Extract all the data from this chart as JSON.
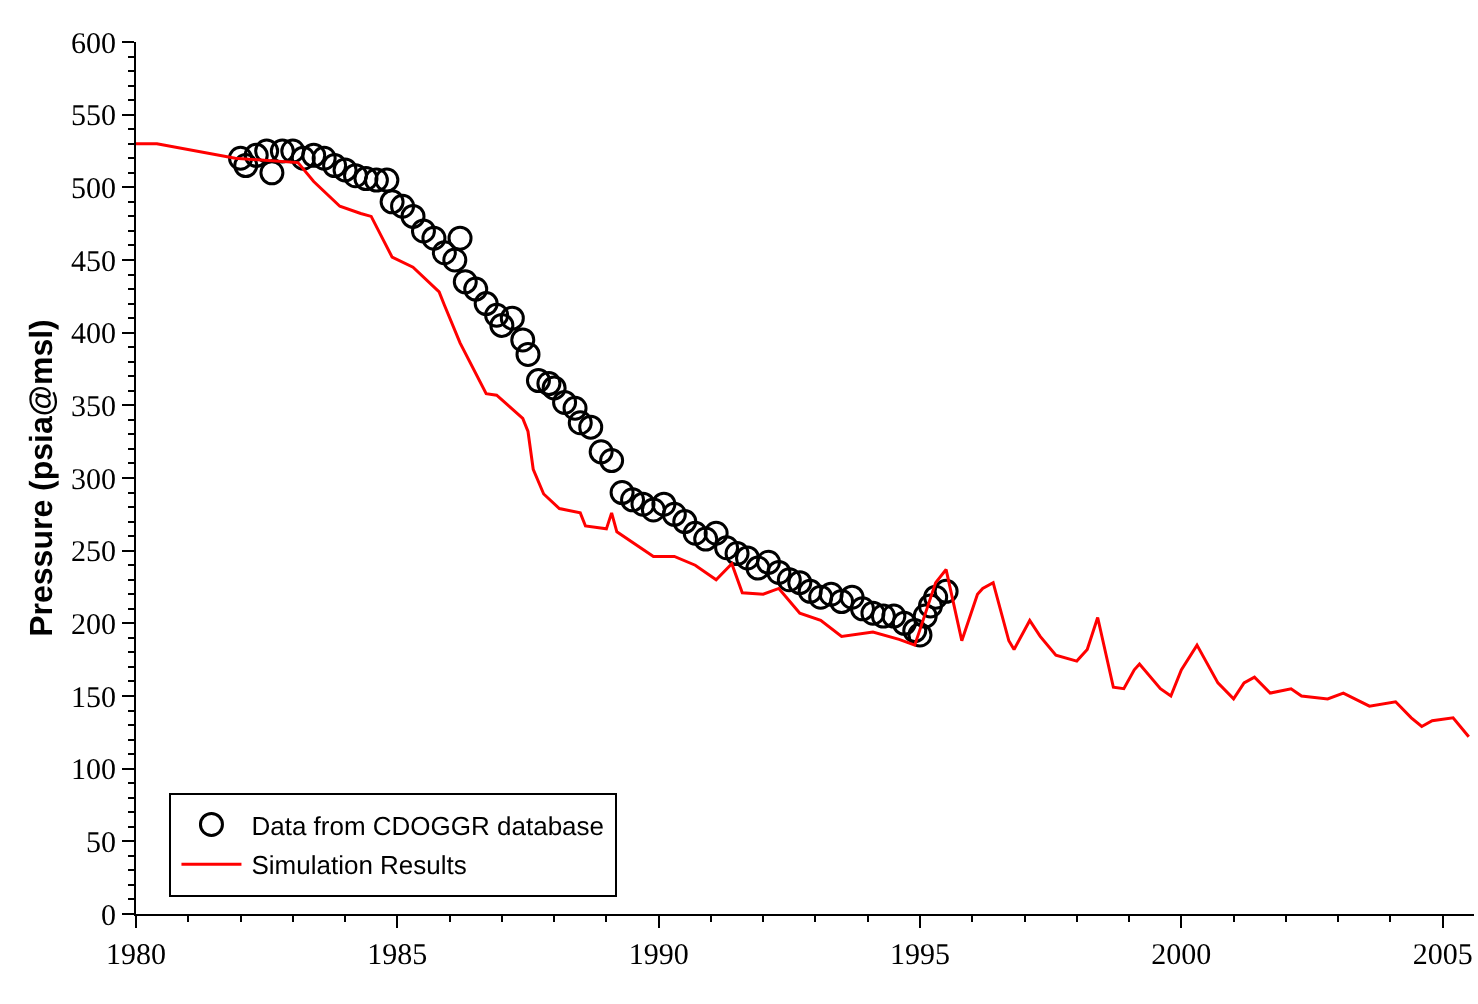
{
  "chart_data": {
    "type": "line",
    "ylabel": "Pressure (psia@msl)",
    "xlim": [
      1980,
      2005.6
    ],
    "xticks": [
      1980,
      1985,
      1990,
      1995,
      2000,
      2005
    ],
    "ylim": [
      0,
      600
    ],
    "yticks": [
      0,
      50,
      100,
      150,
      200,
      250,
      300,
      350,
      400,
      450,
      500,
      550,
      600
    ],
    "grid": false,
    "legend": "bottom left",
    "series": [
      {
        "name": "Data from CDOGGR database",
        "type": "scatter",
        "marker": "circle",
        "color": "#000000",
        "x": [
          1982.0,
          1982.1,
          1982.3,
          1982.5,
          1982.6,
          1982.8,
          1983.0,
          1983.2,
          1983.4,
          1983.6,
          1983.8,
          1984.0,
          1984.2,
          1984.4,
          1984.6,
          1984.8,
          1984.9,
          1985.1,
          1985.3,
          1985.5,
          1985.7,
          1985.9,
          1986.1,
          1986.2,
          1986.3,
          1986.5,
          1986.7,
          1986.9,
          1987.0,
          1987.2,
          1987.4,
          1987.5,
          1987.7,
          1987.9,
          1988.0,
          1988.2,
          1988.4,
          1988.5,
          1988.7,
          1988.9,
          1989.1,
          1989.3,
          1989.5,
          1989.7,
          1989.9,
          1990.1,
          1990.3,
          1990.5,
          1990.7,
          1990.9,
          1991.1,
          1991.3,
          1991.5,
          1991.7,
          1991.9,
          1992.1,
          1992.3,
          1992.5,
          1992.7,
          1992.9,
          1993.1,
          1993.3,
          1993.5,
          1993.7,
          1993.9,
          1994.1,
          1994.3,
          1994.5,
          1994.7,
          1994.9,
          1995.0,
          1995.1,
          1995.2,
          1995.3,
          1995.5
        ],
        "values": [
          520,
          515,
          522,
          525,
          510,
          525,
          525,
          520,
          522,
          520,
          515,
          512,
          508,
          506,
          505,
          505,
          490,
          487,
          480,
          470,
          465,
          455,
          450,
          465,
          435,
          430,
          420,
          412,
          405,
          410,
          395,
          385,
          367,
          365,
          362,
          352,
          348,
          338,
          335,
          318,
          312,
          290,
          285,
          282,
          278,
          282,
          275,
          270,
          262,
          258,
          262,
          252,
          248,
          245,
          238,
          242,
          235,
          230,
          228,
          222,
          218,
          220,
          215,
          218,
          210,
          207,
          205,
          205,
          200,
          195,
          192,
          205,
          212,
          218,
          222
        ]
      },
      {
        "name": "Simulation Results",
        "marker": "none",
        "line_style": "solid",
        "color": "#ff0000",
        "x": [
          1980.0,
          1980.4,
          1981.9,
          1983.1,
          1983.4,
          1983.9,
          1984.3,
          1984.5,
          1984.9,
          1985.3,
          1985.8,
          1985.9,
          1986.2,
          1986.7,
          1986.9,
          1987.4,
          1987.5,
          1987.6,
          1987.8,
          1988.1,
          1988.5,
          1988.6,
          1989.0,
          1989.1,
          1989.2,
          1989.9,
          1990.3,
          1990.7,
          1991.1,
          1991.4,
          1991.6,
          1992.0,
          1992.3,
          1992.7,
          1993.1,
          1993.5,
          1994.1,
          1994.6,
          1994.9,
          1995.3,
          1995.5,
          1995.8,
          1996.1,
          1996.2,
          1996.4,
          1996.7,
          1996.8,
          1997.1,
          1997.3,
          1997.6,
          1998.0,
          1998.2,
          1998.4,
          1998.7,
          1998.9,
          1999.1,
          1999.2,
          1999.6,
          1999.8,
          2000.0,
          2000.3,
          2000.7,
          2001.0,
          2001.2,
          2001.4,
          2001.7,
          2002.1,
          2002.3,
          2002.8,
          2003.1,
          2003.6,
          2004.1,
          2004.4,
          2004.6,
          2004.8,
          2005.2,
          2005.5
        ],
        "values": [
          530,
          530,
          520,
          517,
          504,
          487,
          482,
          480,
          452,
          445,
          428,
          419,
          393,
          358,
          357,
          341,
          332,
          306,
          289,
          279,
          276,
          267,
          265,
          276,
          263,
          246,
          246,
          240,
          230,
          241,
          221,
          220,
          224,
          207,
          202,
          191,
          194,
          189,
          185,
          228,
          237,
          188,
          220,
          224,
          228,
          188,
          182,
          202,
          191,
          178,
          174,
          182,
          204,
          156,
          155,
          168,
          172,
          155,
          150,
          168,
          185,
          159,
          148,
          159,
          163,
          152,
          155,
          150,
          148,
          152,
          143,
          146,
          135,
          129,
          133,
          135,
          122
        ]
      }
    ]
  }
}
